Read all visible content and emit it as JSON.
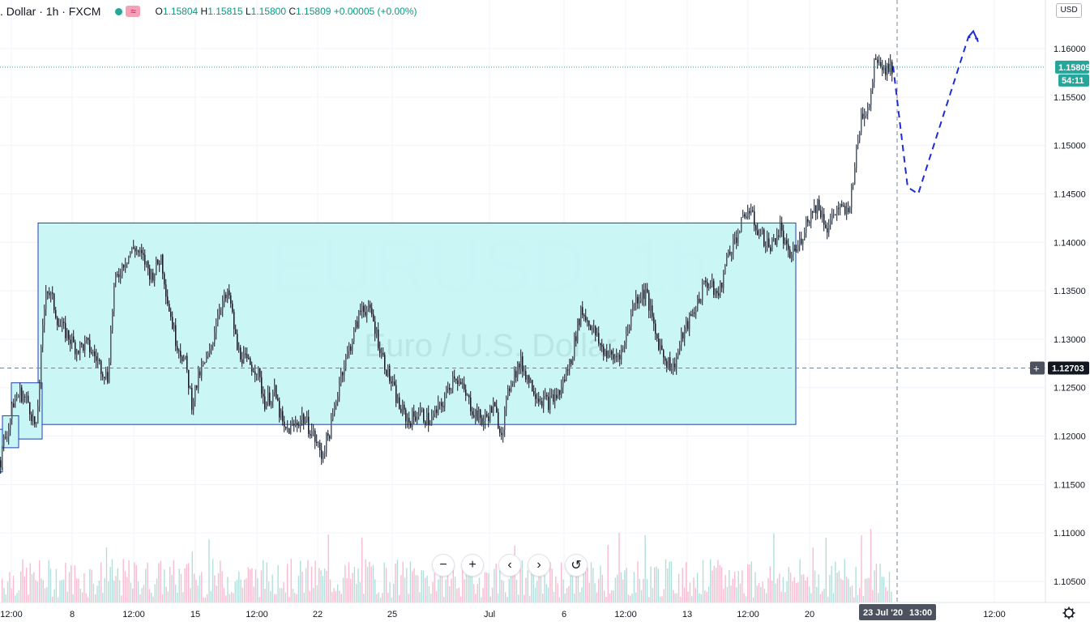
{
  "header": {
    "symbol_title": ". Dollar · 1h · FXCM",
    "indicator_icon": "wave-icon",
    "ohlc": {
      "open_label": "O",
      "open": "1.15804",
      "high_label": "H",
      "high": "1.15815",
      "low_label": "L",
      "low": "1.15800",
      "close_label": "C",
      "close": "1.15809",
      "change": "+0.00005 (+0.00%)"
    }
  },
  "currency_button": "USD",
  "watermark": {
    "symbol": "EURUSD, 1h",
    "description": "Euro / U.S. Dollar"
  },
  "price_labels": {
    "last_price": "1.15809",
    "countdown": "54:11",
    "crosshair_price": "1.12703"
  },
  "time_axis": {
    "labels": [
      "12:00",
      "8",
      "12:00",
      "15",
      "12:00",
      "22",
      "25",
      "Jul",
      "6",
      "12:00",
      "13",
      "12:00",
      "20",
      "12:00"
    ],
    "crosshair_date": "23 Jul '20",
    "crosshair_time": "13:00"
  },
  "toolbar": {
    "zoom_out_icon": "minus-icon",
    "zoom_in_icon": "plus-icon",
    "scroll_left_icon": "chevron-left-icon",
    "scroll_right_icon": "chevron-right-icon",
    "reset_icon": "reset-icon"
  },
  "settings_icon": "gear-icon",
  "colors": {
    "up": "#26a69a",
    "down": "#ef5350",
    "candle": "#131722",
    "range_fill": "#c8f6f6",
    "range_border": "#1e40b0",
    "projection": "#1e2bd6",
    "last_price": "#26a69a"
  },
  "chart_data": {
    "type": "candlestick",
    "title": "EURUSD, 1h",
    "xlabel": "",
    "ylabel": "",
    "ylim": [
      1.1,
      1.166
    ],
    "y_ticks": [
      1.105,
      1.11,
      1.115,
      1.12,
      1.125,
      1.13,
      1.135,
      1.14,
      1.145,
      1.15,
      1.155,
      1.16
    ],
    "y_tick_labels": [
      "1.10500",
      "1.11000",
      "1.11500",
      "1.12000",
      "1.12500",
      "1.13000",
      "1.13500",
      "1.14000",
      "1.14500",
      "1.15000",
      "1.15500",
      "1.16000"
    ],
    "x_tick_labels": [
      "12:00",
      "8",
      "12:00",
      "15",
      "12:00",
      "22",
      "25",
      "Jul",
      "6",
      "12:00",
      "13",
      "12:00",
      "20",
      "12:00"
    ],
    "price_path": [
      [
        0,
        1.1175
      ],
      [
        4,
        1.1195
      ],
      [
        10,
        1.121
      ],
      [
        16,
        1.1235
      ],
      [
        24,
        1.1245
      ],
      [
        34,
        1.1235
      ],
      [
        44,
        1.1205
      ],
      [
        50,
        1.1285
      ],
      [
        56,
        1.1355
      ],
      [
        64,
        1.134
      ],
      [
        72,
        1.1315
      ],
      [
        82,
        1.1305
      ],
      [
        94,
        1.129
      ],
      [
        106,
        1.1295
      ],
      [
        118,
        1.128
      ],
      [
        132,
        1.126
      ],
      [
        140,
        1.1355
      ],
      [
        152,
        1.138
      ],
      [
        165,
        1.1395
      ],
      [
        178,
        1.138
      ],
      [
        186,
        1.1365
      ],
      [
        198,
        1.1385
      ],
      [
        206,
        1.134
      ],
      [
        216,
        1.13
      ],
      [
        228,
        1.1275
      ],
      [
        236,
        1.1235
      ],
      [
        246,
        1.1265
      ],
      [
        258,
        1.1285
      ],
      [
        270,
        1.1335
      ],
      [
        282,
        1.1345
      ],
      [
        292,
        1.129
      ],
      [
        304,
        1.1275
      ],
      [
        316,
        1.127
      ],
      [
        326,
        1.1235
      ],
      [
        338,
        1.1245
      ],
      [
        350,
        1.1205
      ],
      [
        362,
        1.121
      ],
      [
        372,
        1.122
      ],
      [
        384,
        1.1205
      ],
      [
        396,
        1.118
      ],
      [
        408,
        1.121
      ],
      [
        420,
        1.1265
      ],
      [
        432,
        1.1295
      ],
      [
        446,
        1.1335
      ],
      [
        458,
        1.1325
      ],
      [
        470,
        1.1285
      ],
      [
        482,
        1.1255
      ],
      [
        492,
        1.123
      ],
      [
        504,
        1.1215
      ],
      [
        516,
        1.1225
      ],
      [
        530,
        1.1215
      ],
      [
        546,
        1.1235
      ],
      [
        560,
        1.1265
      ],
      [
        572,
        1.1245
      ],
      [
        584,
        1.1225
      ],
      [
        596,
        1.1215
      ],
      [
        608,
        1.123
      ],
      [
        618,
        1.1205
      ],
      [
        630,
        1.126
      ],
      [
        642,
        1.1275
      ],
      [
        654,
        1.1255
      ],
      [
        664,
        1.124
      ],
      [
        676,
        1.1235
      ],
      [
        690,
        1.1245
      ],
      [
        704,
        1.128
      ],
      [
        716,
        1.133
      ],
      [
        728,
        1.1315
      ],
      [
        742,
        1.129
      ],
      [
        756,
        1.128
      ],
      [
        768,
        1.129
      ],
      [
        782,
        1.134
      ],
      [
        796,
        1.135
      ],
      [
        808,
        1.1305
      ],
      [
        820,
        1.128
      ],
      [
        830,
        1.127
      ],
      [
        842,
        1.1305
      ],
      [
        856,
        1.133
      ],
      [
        870,
        1.136
      ],
      [
        886,
        1.1345
      ],
      [
        898,
        1.139
      ],
      [
        910,
        1.141
      ],
      [
        922,
        1.1435
      ],
      [
        936,
        1.141
      ],
      [
        950,
        1.1395
      ],
      [
        962,
        1.1415
      ],
      [
        972,
        1.1385
      ],
      [
        984,
        1.1395
      ],
      [
        996,
        1.1425
      ],
      [
        1008,
        1.144
      ],
      [
        1020,
        1.1415
      ],
      [
        1032,
        1.1435
      ],
      [
        1046,
        1.143
      ],
      [
        1054,
        1.148
      ],
      [
        1062,
        1.153
      ],
      [
        1072,
        1.1545
      ],
      [
        1080,
        1.1595
      ],
      [
        1090,
        1.158
      ],
      [
        1100,
        1.1581
      ]
    ],
    "volume_range": [
      0,
      1
    ],
    "range_box": {
      "from_price": 1.1212,
      "to_price": 1.142
    },
    "small_boxes": [
      {
        "from_price": 1.1197,
        "to_price": 1.1255
      },
      {
        "from_price": 1.1188,
        "to_price": 1.1221
      },
      {
        "from_price": 1.1163,
        "to_price": 1.1207
      }
    ],
    "projection_path": [
      1.1582,
      1.1457,
      1.145,
      1.1612,
      1.161
    ],
    "last_price": 1.15809,
    "crosshair_price": 1.12703
  }
}
